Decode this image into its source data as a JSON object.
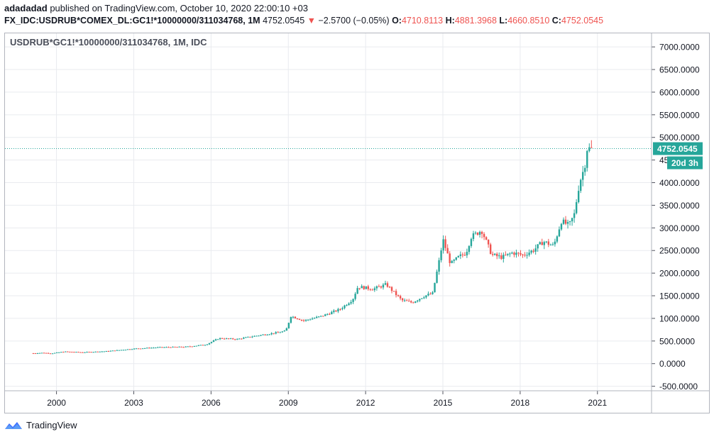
{
  "header": {
    "author": "adadadad",
    "published_text": "published on TradingView.com, October 10, 2020 22:00:10 +03",
    "symbol": "FX_IDC:USDRUB*COMEX_DL:GC1!*10000000/311034768, 1M",
    "last": "4752.0545",
    "change": "−2.5700 (−0.05%)",
    "o_label": "O:",
    "o": "4710.8113",
    "h_label": "H:",
    "h": "4881.3968",
    "l_label": "L:",
    "l": "4660.8510",
    "c_label": "C:",
    "c": "4752.0545"
  },
  "legend": "USDRUB*GC1!*10000000/311034768, 1M, IDC",
  "price_label": "4752.0545",
  "countdown_label": "20d 3h",
  "footer": {
    "brand": "TradingView"
  },
  "colors": {
    "up": "#26a69a",
    "down": "#ef5350",
    "grid": "#e9ebef",
    "price_line": "#26a69a",
    "axis_text": "#131722"
  },
  "chart_data": {
    "type": "candlestick",
    "title": "",
    "interval": "1M",
    "x_ticks": [
      "2000",
      "2003",
      "2006",
      "2009",
      "2012",
      "2015",
      "2018",
      "2021"
    ],
    "y_ticks": [
      "-500.0000",
      "0.0000",
      "500.0000",
      "1000.0000",
      "1500.0000",
      "2000.0000",
      "2500.0000",
      "3000.0000",
      "3500.0000",
      "4000.0000",
      "4500.0000",
      "5000.0000",
      "5500.0000",
      "6000.0000",
      "6500.0000",
      "7000.0000"
    ],
    "ylim": [
      -600,
      7300
    ],
    "xlim": [
      1998.0,
      2023.1
    ],
    "current_price": 4752.0545,
    "series": [
      {
        "t": 1999.1,
        "v": 230
      },
      {
        "t": 1999.5,
        "v": 240
      },
      {
        "t": 1999.8,
        "v": 225
      },
      {
        "t": 2000.3,
        "v": 265
      },
      {
        "t": 2001.0,
        "v": 250
      },
      {
        "t": 2002.0,
        "v": 275
      },
      {
        "t": 2003.0,
        "v": 330
      },
      {
        "t": 2004.0,
        "v": 360
      },
      {
        "t": 2005.0,
        "v": 370
      },
      {
        "t": 2005.8,
        "v": 420
      },
      {
        "t": 2006.3,
        "v": 560
      },
      {
        "t": 2007.0,
        "v": 540
      },
      {
        "t": 2007.8,
        "v": 620
      },
      {
        "t": 2008.5,
        "v": 680
      },
      {
        "t": 2008.9,
        "v": 720
      },
      {
        "t": 2009.1,
        "v": 1050
      },
      {
        "t": 2009.6,
        "v": 950
      },
      {
        "t": 2010.3,
        "v": 1050
      },
      {
        "t": 2011.0,
        "v": 1200
      },
      {
        "t": 2011.5,
        "v": 1420
      },
      {
        "t": 2011.7,
        "v": 1700
      },
      {
        "t": 2012.3,
        "v": 1650
      },
      {
        "t": 2012.8,
        "v": 1750
      },
      {
        "t": 2013.4,
        "v": 1400
      },
      {
        "t": 2013.8,
        "v": 1350
      },
      {
        "t": 2014.3,
        "v": 1500
      },
      {
        "t": 2014.6,
        "v": 1550
      },
      {
        "t": 2014.9,
        "v": 2400
      },
      {
        "t": 2015.0,
        "v": 2750
      },
      {
        "t": 2015.3,
        "v": 2200
      },
      {
        "t": 2015.6,
        "v": 2350
      },
      {
        "t": 2015.9,
        "v": 2450
      },
      {
        "t": 2016.1,
        "v": 2800
      },
      {
        "t": 2016.5,
        "v": 2950
      },
      {
        "t": 2016.9,
        "v": 2400
      },
      {
        "t": 2017.3,
        "v": 2350
      },
      {
        "t": 2017.7,
        "v": 2450
      },
      {
        "t": 2018.1,
        "v": 2400
      },
      {
        "t": 2018.5,
        "v": 2500
      },
      {
        "t": 2018.9,
        "v": 2700
      },
      {
        "t": 2019.3,
        "v": 2600
      },
      {
        "t": 2019.6,
        "v": 3150
      },
      {
        "t": 2019.9,
        "v": 3050
      },
      {
        "t": 2020.1,
        "v": 3300
      },
      {
        "t": 2020.3,
        "v": 4000
      },
      {
        "t": 2020.5,
        "v": 4350
      },
      {
        "t": 2020.6,
        "v": 4750
      },
      {
        "t": 2020.8,
        "v": 4752
      }
    ]
  }
}
